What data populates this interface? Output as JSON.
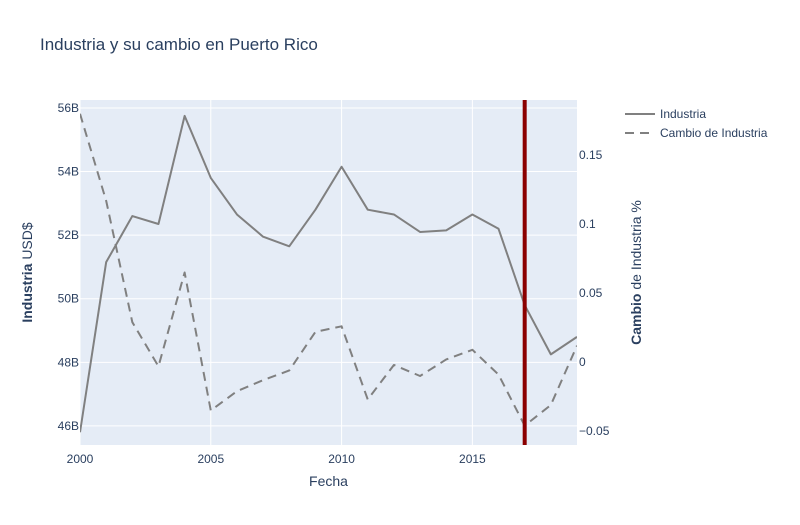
{
  "chart_data": {
    "type": "line",
    "title": "Industria y su cambio en Puerto Rico",
    "xlabel": "Fecha",
    "ylabel_bold": "Industria",
    "ylabel_rest": " USD$",
    "y2label_bold": "Cambio",
    "y2label_rest": " de Industria %",
    "xlim": [
      2000,
      2019
    ],
    "ylim": [
      45.4,
      56.25
    ],
    "y2lim": [
      -0.06,
      0.19
    ],
    "x_ticks": [
      2000,
      2005,
      2010,
      2015
    ],
    "x_tick_labels": [
      "2000",
      "2005",
      "2010",
      "2015"
    ],
    "y_ticks": [
      46,
      48,
      50,
      52,
      54,
      56
    ],
    "y_tick_labels": [
      "46B",
      "48B",
      "50B",
      "52B",
      "54B",
      "56B"
    ],
    "y2_ticks": [
      -0.05,
      0,
      0.05,
      0.1,
      0.15
    ],
    "y2_tick_labels": [
      "−0.05",
      "0",
      "0.05",
      "0.1",
      "0.15"
    ],
    "grid": true,
    "legend_position": "top-right",
    "series": [
      {
        "name": "Industria",
        "axis": "left",
        "style": "solid",
        "color": "#808080",
        "x": [
          2000,
          2001,
          2002,
          2003,
          2004,
          2005,
          2006,
          2007,
          2008,
          2009,
          2010,
          2011,
          2012,
          2013,
          2014,
          2015,
          2016,
          2017,
          2018,
          2019
        ],
        "values": [
          45.8,
          51.15,
          52.6,
          52.35,
          55.75,
          53.8,
          52.65,
          51.95,
          51.65,
          52.8,
          54.15,
          52.8,
          52.65,
          52.1,
          52.15,
          52.65,
          52.2,
          49.8,
          48.25,
          48.8
        ]
      },
      {
        "name": "Cambio de Industria",
        "axis": "right",
        "style": "dashed",
        "color": "#808080",
        "x": [
          2000,
          2001,
          2002,
          2003,
          2004,
          2005,
          2006,
          2007,
          2008,
          2009,
          2010,
          2011,
          2012,
          2013,
          2014,
          2015,
          2016,
          2017,
          2018,
          2019
        ],
        "values": [
          0.18,
          0.117,
          0.029,
          -0.003,
          0.065,
          -0.035,
          -0.021,
          -0.013,
          -0.006,
          0.022,
          0.026,
          -0.027,
          -0.002,
          -0.01,
          0.002,
          0.009,
          -0.009,
          -0.046,
          -0.031,
          0.012
        ]
      }
    ],
    "vertical_line": {
      "x": 2017,
      "color": "#8b0000"
    }
  }
}
